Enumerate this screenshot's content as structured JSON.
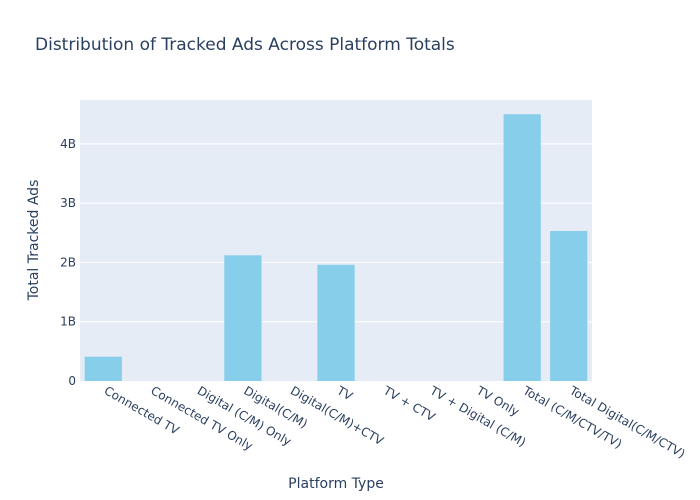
{
  "chart_data": {
    "type": "bar",
    "title": "Distribution of Tracked Ads Across Platform Totals",
    "xlabel": "Platform Type",
    "ylabel": "Total Tracked Ads",
    "categories": [
      "Connected TV",
      "Connected TV Only",
      "Digital (C/M) Only",
      "Digital(C/M)",
      "Digital(C/M)+CTV",
      "TV",
      "TV + CTV",
      "TV + Digital (C/M)",
      "TV Only",
      "Total (C/M/CTV/TV)",
      "Total Digital(C/M/CTV)"
    ],
    "values": [
      410000000,
      0,
      0,
      2120000000,
      0,
      1960000000,
      0,
      0,
      0,
      4500000000,
      2530000000
    ],
    "ylim": [
      0,
      4740000000
    ],
    "yticks": [
      0,
      1000000000,
      2000000000,
      3000000000,
      4000000000
    ],
    "ytick_labels": [
      "0",
      "1B",
      "2B",
      "3B",
      "4B"
    ],
    "bar_color": "#87ceeb",
    "plot_bg": "#e5ecf6",
    "grid": true,
    "legend": "none"
  }
}
